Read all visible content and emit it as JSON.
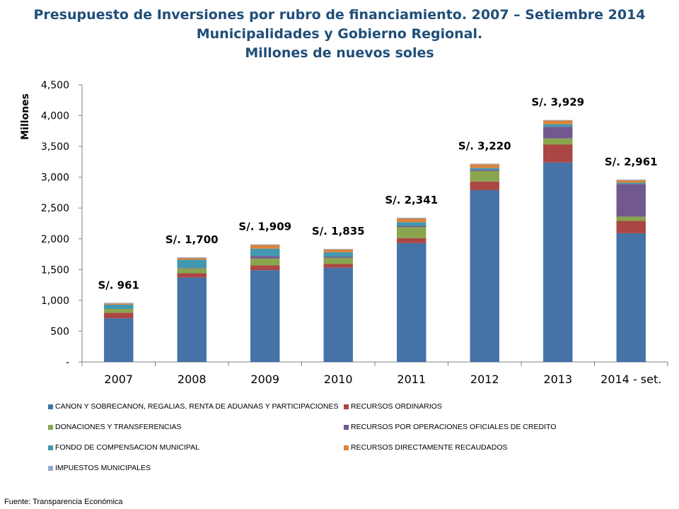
{
  "title_lines": [
    "Presupuesto de Inversiones por rubro de financiamiento. 2007 – Setiembre 2014",
    "Municipalidades y Gobierno Regional.",
    "Millones de nuevos soles"
  ],
  "source": "Fuente: Transparencia Económica",
  "chart_data": {
    "type": "bar",
    "stacked": true,
    "title": "Presupuesto de Inversiones por rubro de financiamiento. 2007 – Setiembre 2014",
    "subtitle": "Municipalidades y Gobierno Regional. Millones de nuevos soles",
    "xlabel": "",
    "ylabel": "Millones",
    "ylim": [
      0,
      4500
    ],
    "yticks": [
      0,
      500,
      1000,
      1500,
      2000,
      2500,
      3000,
      3500,
      4000,
      4500
    ],
    "ytick_labels": [
      "-",
      "500",
      "1,000",
      "1,500",
      "2,000",
      "2,500",
      "3,000",
      "3,500",
      "4,000",
      "4,500"
    ],
    "grid": false,
    "legend_position": "bottom",
    "categories": [
      "2007",
      "2008",
      "2009",
      "2010",
      "2011",
      "2012",
      "2013",
      "2014 - set."
    ],
    "total_labels": [
      "S/. 961",
      "S/. 1,700",
      "S/. 1,909",
      "S/. 1,835",
      "S/. 2,341",
      "S/. 3,220",
      "S/. 3,929",
      "S/. 2,961"
    ],
    "series": [
      {
        "name": "CANON Y SOBRECANON, REGALIAS, RENTA DE ADUANAS Y PARTICIPACIONES",
        "color": "#4572a7",
        "values": [
          710,
          1370,
          1490,
          1530,
          1930,
          2790,
          3240,
          2090
        ]
      },
      {
        "name": "RECURSOS ORDINARIOS",
        "color": "#aa4643",
        "values": [
          90,
          70,
          80,
          60,
          80,
          140,
          290,
          200
        ]
      },
      {
        "name": "DONACIONES Y TRANSFERENCIAS",
        "color": "#89a54e",
        "values": [
          60,
          80,
          110,
          100,
          180,
          170,
          100,
          70
        ]
      },
      {
        "name": "RECURSOS POR OPERACIONES OFICIALES DE CREDITO",
        "color": "#71588f",
        "values": [
          0,
          10,
          40,
          20,
          20,
          20,
          190,
          530
        ]
      },
      {
        "name": "FONDO DE COMPENSACION MUNICIPAL",
        "color": "#4198af",
        "values": [
          70,
          130,
          120,
          70,
          60,
          30,
          40,
          20
        ]
      },
      {
        "name": "RECURSOS DIRECTAMENTE RECAUDADOS",
        "color": "#db843d",
        "values": [
          20,
          30,
          60,
          45,
          60,
          60,
          60,
          40
        ]
      },
      {
        "name": "IMPUESTOS MUNICIPALES",
        "color": "#93a9cf",
        "values": [
          11,
          10,
          9,
          10,
          11,
          10,
          9,
          11
        ]
      }
    ]
  }
}
